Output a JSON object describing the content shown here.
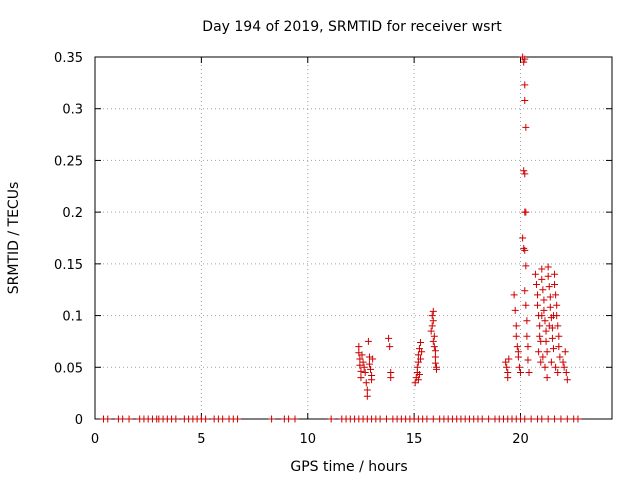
{
  "chart_data": {
    "type": "scatter",
    "title": "Day 194 of 2019, SRMTID for receiver wsrt",
    "xlabel": "GPS time / hours",
    "ylabel": "SRMTID / TECUs",
    "xlim": [
      0,
      24.3
    ],
    "ylim": [
      0,
      0.35
    ],
    "grid": true,
    "xticks": [
      0,
      5,
      10,
      15,
      20
    ],
    "xtick_labels": [
      "0",
      "5",
      "10",
      "15",
      "20"
    ],
    "yticks": [
      0,
      0.05,
      0.1,
      0.15,
      0.2,
      0.25,
      0.3,
      0.35
    ],
    "ytick_labels": [
      "0",
      "0.05",
      "0.1",
      "0.15",
      "0.2",
      "0.25",
      "0.3",
      "0.35"
    ],
    "marker": "+",
    "color": "#cc0000",
    "series": [
      {
        "name": "SRMTID",
        "points": [
          [
            0.4,
            0
          ],
          [
            0.6,
            0
          ],
          [
            1.1,
            0
          ],
          [
            1.3,
            0
          ],
          [
            1.6,
            0
          ],
          [
            2.1,
            0
          ],
          [
            2.3,
            0
          ],
          [
            2.5,
            0
          ],
          [
            2.7,
            0
          ],
          [
            2.9,
            0
          ],
          [
            3.0,
            0
          ],
          [
            3.2,
            0
          ],
          [
            3.4,
            0
          ],
          [
            3.6,
            0
          ],
          [
            3.8,
            0
          ],
          [
            4.2,
            0
          ],
          [
            4.4,
            0
          ],
          [
            4.6,
            0
          ],
          [
            4.8,
            0
          ],
          [
            5.0,
            0
          ],
          [
            5.2,
            0
          ],
          [
            5.6,
            0
          ],
          [
            5.8,
            0
          ],
          [
            6.0,
            0
          ],
          [
            6.3,
            0
          ],
          [
            6.5,
            0
          ],
          [
            6.7,
            0
          ],
          [
            8.3,
            0
          ],
          [
            8.9,
            0
          ],
          [
            9.1,
            0
          ],
          [
            9.4,
            0
          ],
          [
            11.1,
            0
          ],
          [
            11.6,
            0
          ],
          [
            11.8,
            0
          ],
          [
            12.0,
            0
          ],
          [
            12.2,
            0
          ],
          [
            12.4,
            0
          ],
          [
            12.6,
            0
          ],
          [
            12.8,
            0
          ],
          [
            13.0,
            0
          ],
          [
            13.2,
            0
          ],
          [
            13.4,
            0
          ],
          [
            13.7,
            0
          ],
          [
            14.0,
            0
          ],
          [
            14.2,
            0
          ],
          [
            14.4,
            0
          ],
          [
            14.6,
            0
          ],
          [
            14.8,
            0
          ],
          [
            15.0,
            0
          ],
          [
            15.2,
            0
          ],
          [
            15.4,
            0
          ],
          [
            15.6,
            0
          ],
          [
            15.9,
            0
          ],
          [
            16.2,
            0
          ],
          [
            16.4,
            0
          ],
          [
            16.6,
            0
          ],
          [
            16.8,
            0
          ],
          [
            17.0,
            0
          ],
          [
            17.2,
            0
          ],
          [
            17.4,
            0
          ],
          [
            17.6,
            0
          ],
          [
            17.8,
            0
          ],
          [
            18.0,
            0
          ],
          [
            18.2,
            0
          ],
          [
            18.5,
            0
          ],
          [
            18.8,
            0
          ],
          [
            19.0,
            0
          ],
          [
            19.2,
            0
          ],
          [
            19.4,
            0
          ],
          [
            19.6,
            0
          ],
          [
            19.8,
            0
          ],
          [
            20.0,
            0
          ],
          [
            20.2,
            0
          ],
          [
            20.5,
            0
          ],
          [
            20.8,
            0
          ],
          [
            21.0,
            0
          ],
          [
            21.3,
            0
          ],
          [
            21.6,
            0
          ],
          [
            21.9,
            0
          ],
          [
            22.2,
            0
          ],
          [
            22.5,
            0
          ],
          [
            22.7,
            0
          ],
          [
            12.4,
            0.07
          ],
          [
            12.4,
            0.064
          ],
          [
            12.45,
            0.058
          ],
          [
            12.45,
            0.052
          ],
          [
            12.5,
            0.046
          ],
          [
            12.5,
            0.04
          ],
          [
            12.55,
            0.062
          ],
          [
            12.6,
            0.055
          ],
          [
            12.65,
            0.05
          ],
          [
            12.7,
            0.045
          ],
          [
            12.75,
            0.035
          ],
          [
            12.8,
            0.028
          ],
          [
            12.8,
            0.022
          ],
          [
            12.85,
            0.075
          ],
          [
            12.9,
            0.06
          ],
          [
            12.9,
            0.053
          ],
          [
            12.95,
            0.048
          ],
          [
            13.0,
            0.042
          ],
          [
            13.0,
            0.038
          ],
          [
            13.05,
            0.058
          ],
          [
            13.8,
            0.078
          ],
          [
            13.85,
            0.07
          ],
          [
            13.9,
            0.045
          ],
          [
            13.9,
            0.04
          ],
          [
            15.05,
            0.035
          ],
          [
            15.1,
            0.04
          ],
          [
            15.15,
            0.045
          ],
          [
            15.15,
            0.05
          ],
          [
            15.2,
            0.055
          ],
          [
            15.2,
            0.062
          ],
          [
            15.25,
            0.068
          ],
          [
            15.3,
            0.074
          ],
          [
            15.25,
            0.043
          ],
          [
            15.3,
            0.058
          ],
          [
            15.35,
            0.065
          ],
          [
            15.2,
            0.038
          ],
          [
            15.8,
            0.085
          ],
          [
            15.85,
            0.09
          ],
          [
            15.85,
            0.1
          ],
          [
            15.9,
            0.104
          ],
          [
            15.9,
            0.095
          ],
          [
            15.95,
            0.08
          ],
          [
            15.95,
            0.07
          ],
          [
            16.0,
            0.06
          ],
          [
            16.0,
            0.054
          ],
          [
            16.05,
            0.05
          ],
          [
            16.05,
            0.048
          ],
          [
            15.9,
            0.075
          ],
          [
            16.0,
            0.066
          ],
          [
            19.3,
            0.055
          ],
          [
            19.35,
            0.05
          ],
          [
            19.4,
            0.045
          ],
          [
            19.4,
            0.04
          ],
          [
            19.45,
            0.058
          ],
          [
            19.7,
            0.12
          ],
          [
            19.75,
            0.105
          ],
          [
            19.8,
            0.09
          ],
          [
            19.8,
            0.08
          ],
          [
            19.85,
            0.07
          ],
          [
            19.9,
            0.065
          ],
          [
            19.9,
            0.06
          ],
          [
            19.95,
            0.05
          ],
          [
            20.0,
            0.045
          ],
          [
            20.1,
            0.35
          ],
          [
            20.15,
            0.345
          ],
          [
            20.2,
            0.348
          ],
          [
            20.2,
            0.323
          ],
          [
            20.2,
            0.308
          ],
          [
            20.25,
            0.282
          ],
          [
            20.15,
            0.24
          ],
          [
            20.2,
            0.237
          ],
          [
            20.2,
            0.2
          ],
          [
            20.25,
            0.2
          ],
          [
            20.1,
            0.175
          ],
          [
            20.15,
            0.165
          ],
          [
            20.2,
            0.163
          ],
          [
            20.25,
            0.148
          ],
          [
            20.2,
            0.124
          ],
          [
            20.25,
            0.11
          ],
          [
            20.3,
            0.095
          ],
          [
            20.3,
            0.08
          ],
          [
            20.35,
            0.07
          ],
          [
            20.35,
            0.057
          ],
          [
            20.4,
            0.045
          ],
          [
            20.7,
            0.14
          ],
          [
            20.75,
            0.13
          ],
          [
            20.8,
            0.12
          ],
          [
            20.8,
            0.11
          ],
          [
            20.85,
            0.1
          ],
          [
            20.9,
            0.09
          ],
          [
            20.9,
            0.08
          ],
          [
            20.95,
            0.075
          ],
          [
            21.0,
            0.145
          ],
          [
            21.0,
            0.135
          ],
          [
            21.05,
            0.125
          ],
          [
            21.1,
            0.115
          ],
          [
            21.1,
            0.105
          ],
          [
            21.15,
            0.095
          ],
          [
            21.2,
            0.085
          ],
          [
            21.2,
            0.075
          ],
          [
            21.25,
            0.065
          ],
          [
            21.3,
            0.147
          ],
          [
            21.3,
            0.138
          ],
          [
            21.35,
            0.128
          ],
          [
            21.4,
            0.118
          ],
          [
            21.4,
            0.108
          ],
          [
            21.45,
            0.098
          ],
          [
            21.5,
            0.088
          ],
          [
            21.5,
            0.078
          ],
          [
            21.55,
            0.068
          ],
          [
            21.6,
            0.14
          ],
          [
            21.6,
            0.13
          ],
          [
            21.65,
            0.12
          ],
          [
            21.7,
            0.11
          ],
          [
            21.7,
            0.1
          ],
          [
            21.75,
            0.09
          ],
          [
            21.8,
            0.08
          ],
          [
            21.8,
            0.07
          ],
          [
            21.85,
            0.06
          ],
          [
            20.95,
            0.055
          ],
          [
            21.05,
            0.06
          ],
          [
            21.15,
            0.05
          ],
          [
            21.25,
            0.04
          ],
          [
            21.45,
            0.055
          ],
          [
            21.65,
            0.05
          ],
          [
            21.75,
            0.045
          ],
          [
            20.85,
            0.065
          ],
          [
            21.55,
            0.1
          ],
          [
            21.35,
            0.09
          ],
          [
            21.0,
            0.1
          ],
          [
            22.0,
            0.055
          ],
          [
            22.05,
            0.05
          ],
          [
            22.1,
            0.065
          ],
          [
            22.15,
            0.045
          ],
          [
            22.2,
            0.038
          ]
        ]
      }
    ]
  }
}
